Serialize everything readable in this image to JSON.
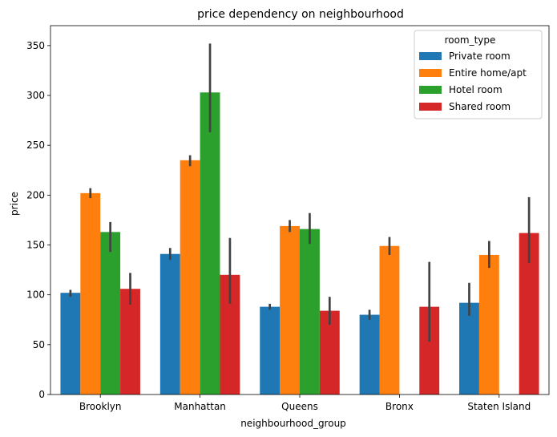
{
  "chart_data": {
    "type": "bar",
    "title": "price dependency on neighbourhood",
    "xlabel": "neighbourhood_group",
    "ylabel": "price",
    "ylim": [
      0,
      370
    ],
    "yticks": [
      0,
      50,
      100,
      150,
      200,
      250,
      300,
      350
    ],
    "categories": [
      "Brooklyn",
      "Manhattan",
      "Queens",
      "Bronx",
      "Staten Island"
    ],
    "legend": {
      "title": "room_type",
      "placement": "top-right"
    },
    "grid": false,
    "series": [
      {
        "name": "Private room",
        "color": "#1f77b4",
        "values": [
          102,
          141,
          88,
          80,
          92
        ],
        "err_low": [
          98,
          135,
          85,
          75,
          79
        ],
        "err_high": [
          105,
          147,
          91,
          85,
          112
        ]
      },
      {
        "name": "Entire home/apt",
        "color": "#ff7f0e",
        "values": [
          202,
          235,
          169,
          149,
          140
        ],
        "err_low": [
          197,
          229,
          163,
          140,
          127
        ],
        "err_high": [
          207,
          240,
          175,
          158,
          154
        ]
      },
      {
        "name": "Hotel room",
        "color": "#2ca02c",
        "values": [
          163,
          303,
          166,
          null,
          null
        ],
        "err_low": [
          143,
          263,
          151,
          null,
          null
        ],
        "err_high": [
          173,
          352,
          182,
          null,
          null
        ]
      },
      {
        "name": "Shared room",
        "color": "#d62728",
        "values": [
          106,
          120,
          84,
          88,
          162
        ],
        "err_low": [
          90,
          91,
          70,
          53,
          132
        ],
        "err_high": [
          122,
          157,
          98,
          133,
          198
        ]
      }
    ]
  }
}
